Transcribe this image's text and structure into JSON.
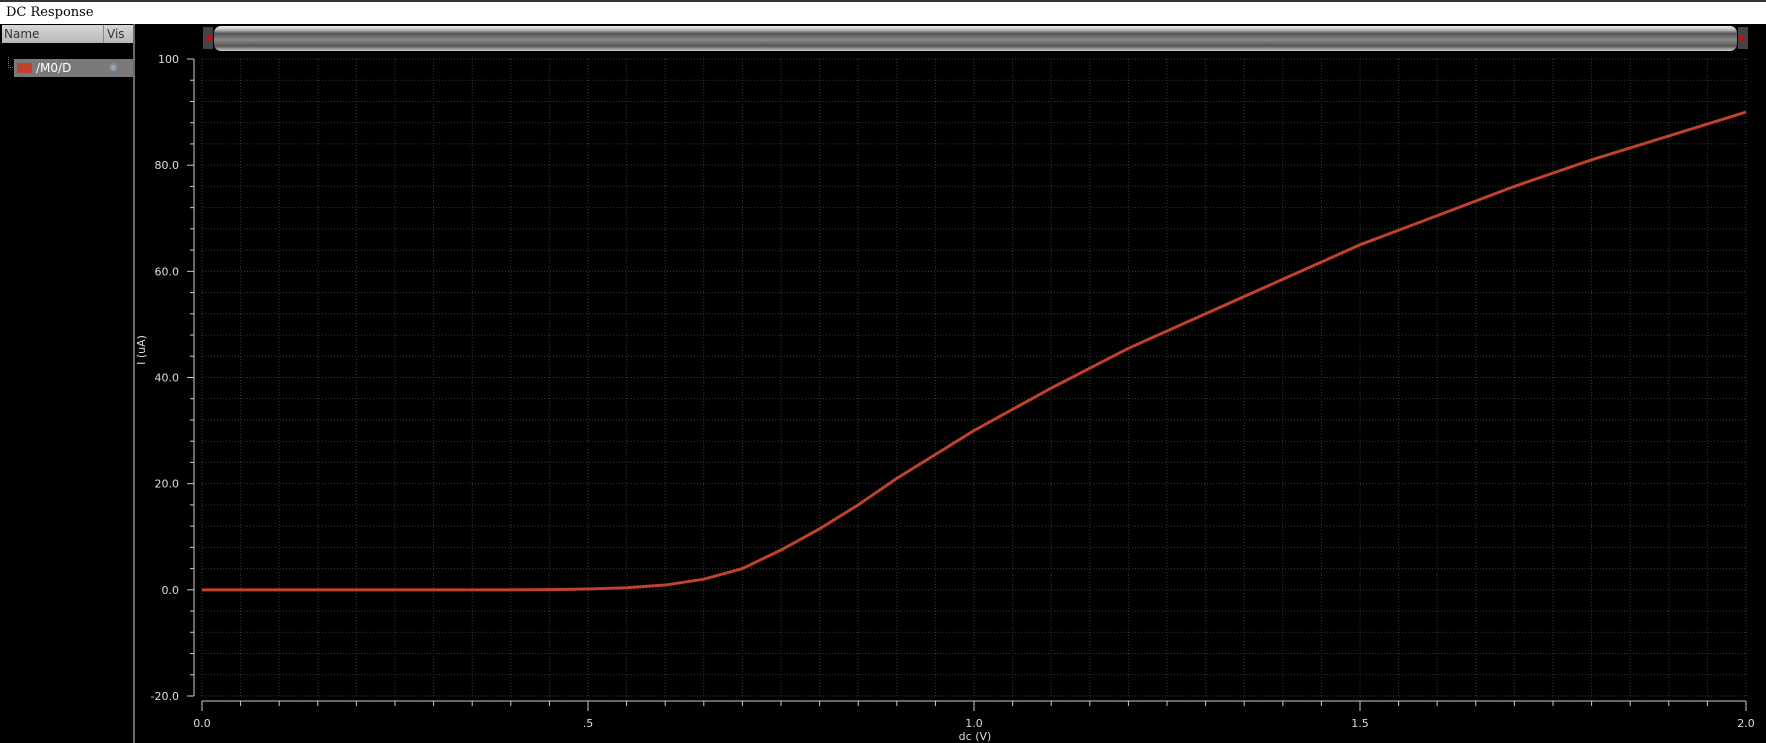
{
  "window": {
    "title": "DC Response"
  },
  "sidebar": {
    "header_name": "Name",
    "header_vis": "Vis",
    "items": [
      {
        "label": "/M0/D",
        "color": "#c0412c",
        "visible_icon": "eye-icon"
      }
    ]
  },
  "chart_data": {
    "type": "line",
    "title": "",
    "xlabel": "dc (V)",
    "ylabel": "I (uA)",
    "xlim": [
      0,
      2.0
    ],
    "ylim": [
      -20,
      100
    ],
    "x_ticks": [
      "0.0",
      ".5",
      "1.0",
      "1.5",
      "2.0"
    ],
    "x_tick_values": [
      0,
      0.5,
      1.0,
      1.5,
      2.0
    ],
    "y_ticks": [
      "-20.0",
      "0.0",
      "20.0",
      "40.0",
      "60.0",
      "80.0",
      "100"
    ],
    "y_tick_values": [
      -20,
      0,
      20,
      40,
      60,
      80,
      100
    ],
    "grid": true,
    "background": "#000000",
    "series": [
      {
        "name": "/M0/D",
        "color": "#c0412c",
        "x": [
          0,
          0.1,
          0.2,
          0.3,
          0.4,
          0.45,
          0.5,
          0.55,
          0.6,
          0.65,
          0.7,
          0.75,
          0.8,
          0.85,
          0.9,
          0.95,
          1.0,
          1.1,
          1.2,
          1.3,
          1.4,
          1.5,
          1.6,
          1.7,
          1.8,
          1.9,
          2.0
        ],
        "y": [
          0,
          0,
          0,
          0,
          0,
          0.05,
          0.15,
          0.4,
          0.9,
          2.0,
          4.0,
          7.5,
          11.5,
          16,
          21,
          25.5,
          30,
          38,
          45.5,
          52,
          58.5,
          65,
          70.5,
          76,
          81,
          85.5,
          90
        ]
      }
    ]
  }
}
